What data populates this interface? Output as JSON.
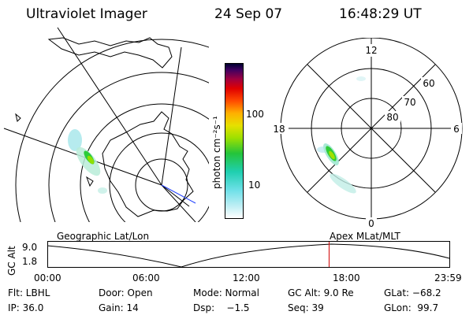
{
  "header": {
    "instrument": "Ultraviolet Imager",
    "date": "24 Sep 07",
    "time": "16:48:29 UT"
  },
  "colorbar": {
    "unit_label": "photon cm⁻²s⁻¹",
    "ticks": [
      "100",
      "10"
    ]
  },
  "polar_plot": {
    "mlt_labels": {
      "top": "12",
      "bottom": "0",
      "left": "18",
      "right": "6"
    },
    "lat_labels": [
      "60",
      "70",
      "80"
    ]
  },
  "map_labels": {
    "geographic": "Geographic Lat/Lon",
    "apex": "Apex MLat/MLT"
  },
  "altitude_plot": {
    "ylabel": "GC Alt",
    "ytick_top": "9.0",
    "ytick_bottom": "1.8",
    "xticks": [
      "00:00",
      "06:00",
      "12:00",
      "18:00",
      "23:59"
    ],
    "current_time_marker_hours": 16.81,
    "marker_color": "#d00000"
  },
  "info": {
    "row1": {
      "flt": "Flt: LBHL",
      "door": "Door: Open",
      "mode": "Mode: Normal",
      "gc_alt": "GC Alt: 9.0 Re",
      "glat": "GLat: −68.2"
    },
    "row2": {
      "ip": "IP: 36.0",
      "gain": "Gain: 14",
      "dsp": "Dsp:    −1.5",
      "seq": "Seq: 39",
      "glon": "GLon:  99.7"
    }
  }
}
